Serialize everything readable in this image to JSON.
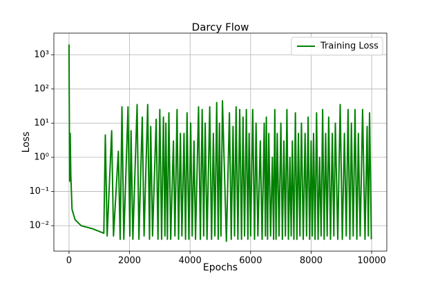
{
  "chart_data": {
    "type": "line",
    "title": "Darcy Flow",
    "x_label": "Epochs",
    "y_label": "Loss",
    "log_y": true,
    "grid": true,
    "legend": "upper right",
    "xlim": [
      -500,
      10500
    ],
    "xticks": [
      0,
      2000,
      4000,
      6000,
      8000,
      10000
    ],
    "ylim": [
      0.0018,
      4300
    ],
    "yticks": [
      {
        "value": 0.01,
        "label": "10⁻²"
      },
      {
        "value": 0.1,
        "label": "10⁻¹"
      },
      {
        "value": 1,
        "label": "10⁰"
      },
      {
        "value": 10,
        "label": "10¹"
      },
      {
        "value": 100,
        "label": "10²"
      },
      {
        "value": 1000,
        "label": "10³"
      }
    ],
    "x": [
      0,
      20,
      40,
      60,
      100,
      200,
      400,
      800,
      1150,
      1200,
      1260,
      1410,
      1470,
      1630,
      1690,
      1750,
      1810,
      1950,
      2010,
      2050,
      2110,
      2250,
      2310,
      2420,
      2480,
      2600,
      2660,
      2700,
      2760,
      2880,
      2940,
      3000,
      3060,
      3120,
      3170,
      3200,
      3250,
      3300,
      3360,
      3450,
      3500,
      3570,
      3620,
      3680,
      3730,
      3800,
      3850,
      3900,
      3960,
      4020,
      4070,
      4130,
      4180,
      4280,
      4340,
      4400,
      4450,
      4500,
      4560,
      4650,
      4710,
      4770,
      4820,
      4880,
      4930,
      4970,
      5020,
      5070,
      5200,
      5300,
      5360,
      5420,
      5470,
      5520,
      5580,
      5640,
      5700,
      5750,
      5800,
      5860,
      5910,
      5950,
      6000,
      6070,
      6130,
      6180,
      6240,
      6320,
      6380,
      6450,
      6490,
      6520,
      6560,
      6600,
      6660,
      6720,
      6760,
      6800,
      6840,
      6880,
      6940,
      7000,
      7050,
      7100,
      7150,
      7200,
      7250,
      7300,
      7340,
      7380,
      7430,
      7480,
      7530,
      7580,
      7630,
      7680,
      7740,
      7800,
      7850,
      7900,
      7950,
      8000,
      8040,
      8080,
      8130,
      8180,
      8230,
      8280,
      8330,
      8380,
      8430,
      8480,
      8530,
      8580,
      8640,
      8700,
      8750,
      8800,
      8880,
      8960,
      9030,
      9100,
      9160,
      9220,
      9280,
      9330,
      9390,
      9450,
      9510,
      9560,
      9620,
      9700,
      9780,
      9850,
      9890,
      9930,
      9990
    ],
    "series": [
      {
        "name": "Training Loss",
        "color": "#008000",
        "values": [
          2000,
          0.2,
          5,
          0.3,
          0.03,
          0.015,
          0.01,
          0.008,
          0.006,
          4.5,
          0.005,
          6,
          0.005,
          1.5,
          0.004,
          30,
          0.004,
          30,
          0.005,
          6,
          0.004,
          35,
          0.004,
          15,
          0.005,
          35,
          0.004,
          8,
          0.005,
          13,
          0.004,
          25,
          0.004,
          15,
          0.005,
          10,
          0.004,
          20,
          0.004,
          3,
          0.005,
          25,
          0.004,
          5,
          0.005,
          5,
          0.004,
          20,
          0.004,
          10,
          0.005,
          3,
          0.004,
          30,
          0.004,
          25,
          0.005,
          10,
          0.004,
          30,
          0.004,
          5,
          0.005,
          40,
          0.004,
          10,
          0.005,
          45,
          0.0035,
          20,
          0.004,
          8,
          0.005,
          30,
          0.004,
          25,
          0.004,
          15,
          0.005,
          25,
          0.004,
          5,
          0.005,
          25,
          0.004,
          10,
          0.005,
          3,
          0.004,
          10,
          0.005,
          15,
          0.004,
          5,
          0.005,
          1,
          0.004,
          25,
          0.004,
          5,
          0.005,
          10,
          0.004,
          3,
          0.005,
          25,
          0.004,
          1,
          0.005,
          3,
          0.004,
          20,
          0.004,
          5,
          0.005,
          10,
          0.004,
          5,
          0.005,
          15,
          0.004,
          3,
          0.005,
          5,
          0.004,
          20,
          0.004,
          1,
          0.005,
          25,
          0.004,
          5,
          0.005,
          15,
          0.004,
          5,
          0.005,
          10,
          0.004,
          35,
          0.004,
          5,
          0.005,
          25,
          0.004,
          10,
          0.005,
          25,
          0.004,
          5,
          0.005,
          25,
          0.004,
          8,
          0.005,
          20,
          0.004
        ]
      }
    ]
  }
}
